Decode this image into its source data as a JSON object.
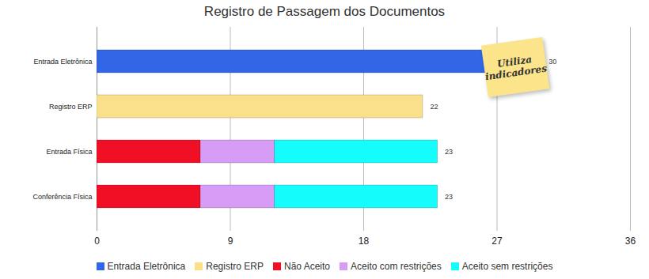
{
  "chart_data": {
    "type": "bar",
    "orientation": "horizontal",
    "stacked": true,
    "title": "Registro de Passagem dos Documentos",
    "categories": [
      "Entrada Eletrônica",
      "Registro ERP",
      "Entrada Física",
      "Conferência Física"
    ],
    "series": [
      {
        "name": "Entrada Eletrônica",
        "color": "#3366e6",
        "values": [
          30,
          null,
          null,
          null
        ]
      },
      {
        "name": "Registro ERP",
        "color": "#fbe08c",
        "values": [
          null,
          22,
          null,
          null
        ]
      },
      {
        "name": "Não Aceito",
        "color": "#f00f25",
        "values": [
          null,
          null,
          7,
          7
        ]
      },
      {
        "name": "Aceito com restrições",
        "color": "#d69cf6",
        "values": [
          null,
          null,
          5,
          5
        ]
      },
      {
        "name": "Aceito sem restrições",
        "color": "#14fcfc",
        "values": [
          null,
          null,
          11,
          11
        ]
      }
    ],
    "totals": [
      30,
      22,
      23,
      23
    ],
    "xlim": [
      0,
      36
    ],
    "xticks": [
      0,
      9,
      18,
      27,
      36
    ],
    "grid": true,
    "legend": "bottom",
    "annotations": [
      "Utiliza indicadores"
    ]
  }
}
